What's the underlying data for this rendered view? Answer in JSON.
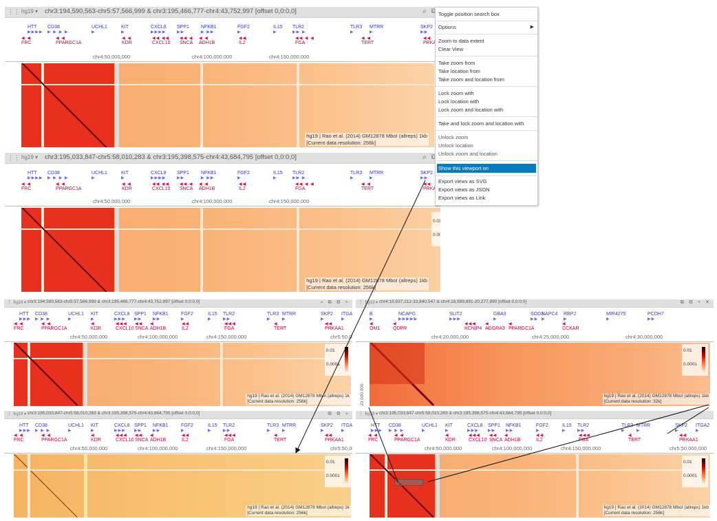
{
  "top_views": [
    {
      "assembly": "hg19",
      "coords": "chr3:194,590,563-chr5:57,566,999 & chr3:195,466,777-chr4:43,752,997 [offset 0,0:0,0]",
      "caption1": "hg19 | Rao et al. (2014) GM12878 MboI (allreps) 1kb",
      "caption2": "[Current data resolution: 256k]"
    },
    {
      "assembly": "hg19",
      "coords": "chr3:195,033,847-chr5:58,010,283 & chr3:195,398,575-chr4:43,684,795 [offset 0,0:0,0]",
      "caption1": "hg19 | Rao et al. (2014) GM12878 MboI (allreps) 1kb",
      "caption2": "[Current data resolution: 256k]"
    }
  ],
  "bottom_views": [
    {
      "assembly": "hg19",
      "coords": "chr3:194,590,563-chr5:57,566,999 & chr3:195,466,777-chr4:43,752,997 [offset 0,0:0,0]",
      "caption1": "hg19 | Rao et al. (2014) GM12878 MboI (allreps) 1k",
      "caption2": "[Current data resolution: 256k]"
    },
    {
      "assembly": "hg19",
      "coords": "chr4:15,937,212-33,840,547 & chr4:16,989,891-20,277,890 [offset 0,0:0,0]",
      "caption1": "hg19 | Rao et al. (2014) GM12878 MboI (allreps) 1kb",
      "caption2": "[Current data resolution: 32k]"
    },
    {
      "assembly": "hg19",
      "coords": "chr3:195,033,847-chr5:58,010,283 & chr3:195,398,575-chr4:43,684,795 [offset 0,0:0,0]",
      "caption1": "hg19 | Rao et al. (2014) GM12878 MboI (allreps) 1k",
      "caption2": "[Current data resolution: 256k]"
    },
    {
      "assembly": "hg19",
      "coords": "chr3:195,033,847-chr5:58,010,283 & chr3:195,398,575-chr4:43,684,795 [offset 0,0:0,0]",
      "caption1": "hg19 | Rao et al. (2014) GM12878 MboI (allreps) 1kb",
      "caption2": "[Current data resolution: 256k]"
    }
  ],
  "genes": {
    "forward": [
      "HTT",
      "CD38",
      "UCHL1",
      "KIT",
      "CXCL8",
      "SPP1",
      "NFKB1",
      "FGF2",
      "IL15",
      "TLR2",
      "TLR3",
      "MTRR",
      "SKP2"
    ],
    "reverse": [
      "FRC",
      "PPARGC1A",
      "KDR",
      "CXCL10",
      "SNCA",
      "ADH1B",
      "IL2",
      "FGA",
      "TERT",
      "PRKAA1"
    ],
    "extra_forward": "ITGA2"
  },
  "genes_zoom": {
    "forward": [
      "B",
      "NCAPG",
      "SLIT2",
      "GBA3",
      "SOD3",
      "NAPC4",
      "RBPJ",
      "MIR4275",
      "PCDH7"
    ],
    "reverse": [
      "OM1",
      "QDPR",
      "KCNIP4",
      "ADGRA3",
      "PPARGC1A",
      "CCKAR"
    ]
  },
  "ticks": {
    "main": [
      "chr4:50,000,000",
      "chr4:100,000,000",
      "chr4:150,000,000"
    ],
    "edge": "chr5:50,000,000",
    "edge_short": "chr5:50,00",
    "zoom": [
      "chr4:20,000,000",
      "chr4:25,000,000",
      "chr4:30,000,000"
    ],
    "zoom_y": "20,000,000"
  },
  "legend": {
    "high": "0.01",
    "low": "0.0001"
  },
  "menu": {
    "items": [
      "Toggle position search box",
      "Options",
      "Zoom to data extent",
      "Clear View",
      "Take zoom from",
      "Take location from",
      "Take zoom and location from",
      "Lock zoom with",
      "Lock location with",
      "Lock zoom and location with",
      "Take and lock zoom and location with",
      "Unlock zoom",
      "Unlock location",
      "Unlock zoom and location",
      "Show this viewport on",
      "Export views as SVG",
      "Export views as JSON",
      "Export views as Link"
    ],
    "submenu_arrow": "▶"
  },
  "icons": {
    "grip": "⋮⋮",
    "dropdown": "▾",
    "search": "⌕",
    "copy": "⧉",
    "gear": "⚙",
    "add": "+",
    "close": "✕"
  },
  "colors": {
    "menu_highlight": "#0a7bbf",
    "heat_high": "#e8301f",
    "forward_gene": "#3333cc",
    "reverse_gene": "#cc0033"
  }
}
